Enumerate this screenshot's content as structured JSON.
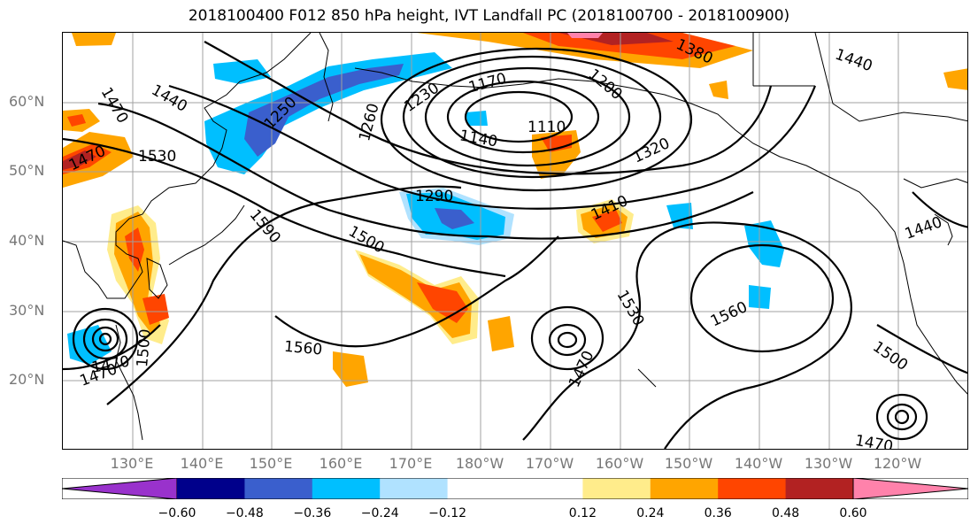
{
  "title": "2018100400 F012 850 hPa height, IVT Landfall PC (2018100700 - 2018100900)",
  "lat_labels": [
    "60°N",
    "50°N",
    "40°N",
    "30°N",
    "20°N"
  ],
  "lon_labels": [
    "130°E",
    "140°E",
    "150°E",
    "160°E",
    "170°E",
    "180°W",
    "170°W",
    "160°W",
    "150°W",
    "140°W",
    "130°W",
    "120°W"
  ],
  "contour_labels": [
    "1380",
    "1440",
    "1250",
    "1230",
    "1170",
    "1200",
    "1260",
    "1470",
    "1440",
    "1470",
    "1530",
    "1140",
    "1110",
    "1320",
    "1290",
    "1410",
    "1590",
    "1500",
    "1440",
    "1560",
    "1530",
    "1560",
    "1470",
    "1500",
    "1470",
    "1500",
    "1470",
    "1470"
  ],
  "colorbar": {
    "colors": [
      "#9932cc",
      "#00008b",
      "#3a5fcd",
      "#00bfff",
      "#b0e2ff",
      "#ffffff",
      "#ffffff",
      "#ffec8b",
      "#ffa500",
      "#ff4500",
      "#b22222",
      "#ff82ab"
    ],
    "ticks": [
      "−0.60",
      "−0.48",
      "−0.36",
      "−0.24",
      "−0.12",
      "0.12",
      "0.24",
      "0.36",
      "0.48",
      "0.60"
    ]
  },
  "shading_colors": {
    "pos_light": "#ffec8b",
    "pos_mid": "#ffa500",
    "pos_strong": "#ff4500",
    "pos_max": "#b22222",
    "neg_light": "#b0e2ff",
    "neg_mid": "#00bfff",
    "neg_strong": "#3a5fcd"
  }
}
